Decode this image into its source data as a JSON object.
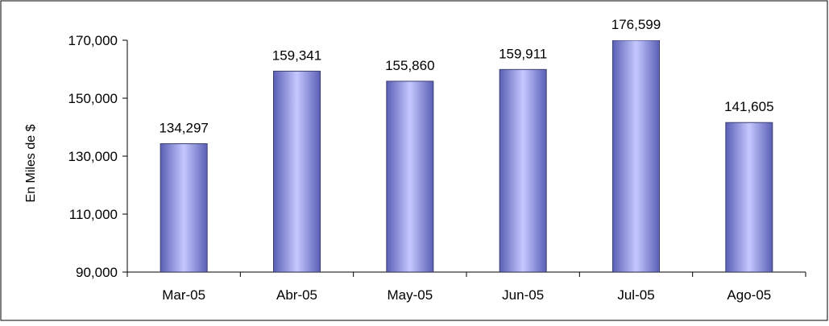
{
  "chart_data": {
    "type": "bar",
    "title": "",
    "xlabel": "",
    "ylabel": "En Miles de $",
    "categories": [
      "Mar-05",
      "Abr-05",
      "May-05",
      "Jun-05",
      "Jul-05",
      "Ago-05"
    ],
    "values": [
      134297,
      159341,
      155860,
      159911,
      176599,
      141605
    ],
    "value_labels": [
      "134,297",
      "159,341",
      "155,860",
      "159,911",
      "176,599",
      "141,605"
    ],
    "ylim": [
      90000,
      170000
    ],
    "yticks": [
      90000,
      110000,
      130000,
      150000,
      170000
    ],
    "ytick_labels": [
      "90,000",
      "110,000",
      "130,000",
      "150,000",
      "170,000"
    ],
    "grid": false,
    "legend": "none",
    "colors": {
      "bar_edge": "#3b3f6e",
      "bar_dark": "#5a5fb5",
      "bar_light": "#c5c8ff",
      "axis": "#000000",
      "frame": "#000000"
    }
  }
}
